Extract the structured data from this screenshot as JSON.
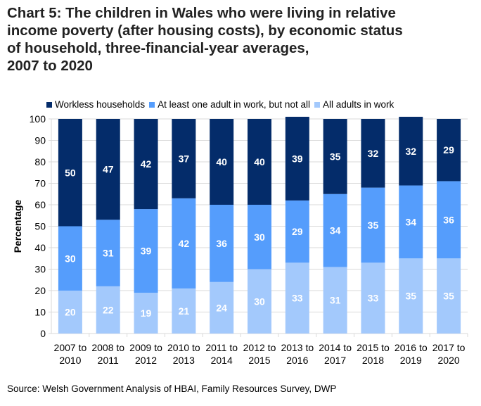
{
  "title_lines": [
    "Chart 5: The children in Wales who were living in relative",
    "income poverty (after housing costs), by economic status",
    "of household, three-financial-year averages,",
    "2007 to 2020"
  ],
  "source": "Source: Welsh Government Analysis of HBAI, Family Resources Survey, DWP",
  "chart_data": {
    "type": "bar",
    "stacked": true,
    "title": "Chart 5: The children in Wales who were living in relative income poverty (after housing costs), by economic status of household, three-financial-year averages, 2007 to 2020",
    "xlabel": "",
    "ylabel": "Percentage",
    "ylim": [
      0,
      100
    ],
    "yticks": [
      0,
      10,
      20,
      30,
      40,
      50,
      60,
      70,
      80,
      90,
      100
    ],
    "grid": true,
    "legend_position": "top",
    "categories": [
      [
        "2007 to",
        "2010"
      ],
      [
        "2008 to",
        "2011"
      ],
      [
        "2009 to",
        "2012"
      ],
      [
        "2010 to",
        "2013"
      ],
      [
        "2011 to",
        "2014"
      ],
      [
        "2012 to",
        "2015"
      ],
      [
        "2013 to",
        "2016"
      ],
      [
        "2014 to",
        "2017"
      ],
      [
        "2015 to",
        "2018"
      ],
      [
        "2016 to",
        "2019"
      ],
      [
        "2017 to",
        "2020"
      ]
    ],
    "series": [
      {
        "name": "All adults in work",
        "color": "#a3c9fc",
        "values": [
          20,
          22,
          19,
          21,
          24,
          30,
          33,
          31,
          33,
          35,
          35
        ]
      },
      {
        "name": "At least one adult in work, but not all",
        "color": "#559dfc",
        "values": [
          30,
          31,
          39,
          42,
          36,
          30,
          29,
          34,
          35,
          34,
          36
        ]
      },
      {
        "name": "Workless households",
        "color": "#042c6a",
        "values": [
          50,
          47,
          42,
          37,
          40,
          40,
          39,
          35,
          32,
          32,
          29
        ]
      }
    ],
    "legend": [
      {
        "name": "Workless households",
        "color": "#042c6a"
      },
      {
        "name": "At least one adult in work, but not all",
        "color": "#559dfc"
      },
      {
        "name": "All adults in work",
        "color": "#a3c9fc"
      }
    ]
  }
}
